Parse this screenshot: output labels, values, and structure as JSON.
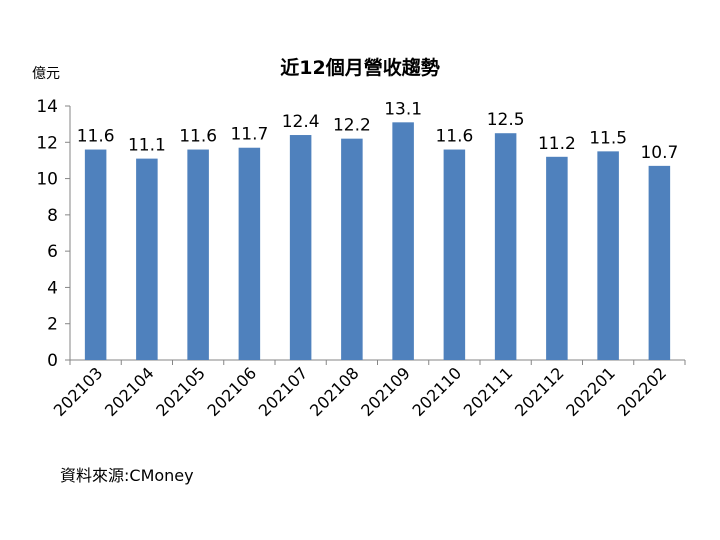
{
  "chart_data": {
    "type": "bar",
    "title": "近12個月營收趨勢",
    "unit_label": "億元",
    "xlabel": "",
    "ylabel": "",
    "categories": [
      "202103",
      "202104",
      "202105",
      "202106",
      "202107",
      "202108",
      "202109",
      "202110",
      "202111",
      "202112",
      "202201",
      "202202"
    ],
    "values": [
      11.6,
      11.1,
      11.6,
      11.7,
      12.4,
      12.2,
      13.1,
      11.6,
      12.5,
      11.2,
      11.5,
      10.7
    ],
    "ylim": [
      0,
      14
    ],
    "yticks": [
      0,
      2,
      4,
      6,
      8,
      10,
      12,
      14
    ],
    "grid": false,
    "legend": "none",
    "bar_color": "#4f81bd"
  },
  "source_text": "資料來源:CMoney"
}
